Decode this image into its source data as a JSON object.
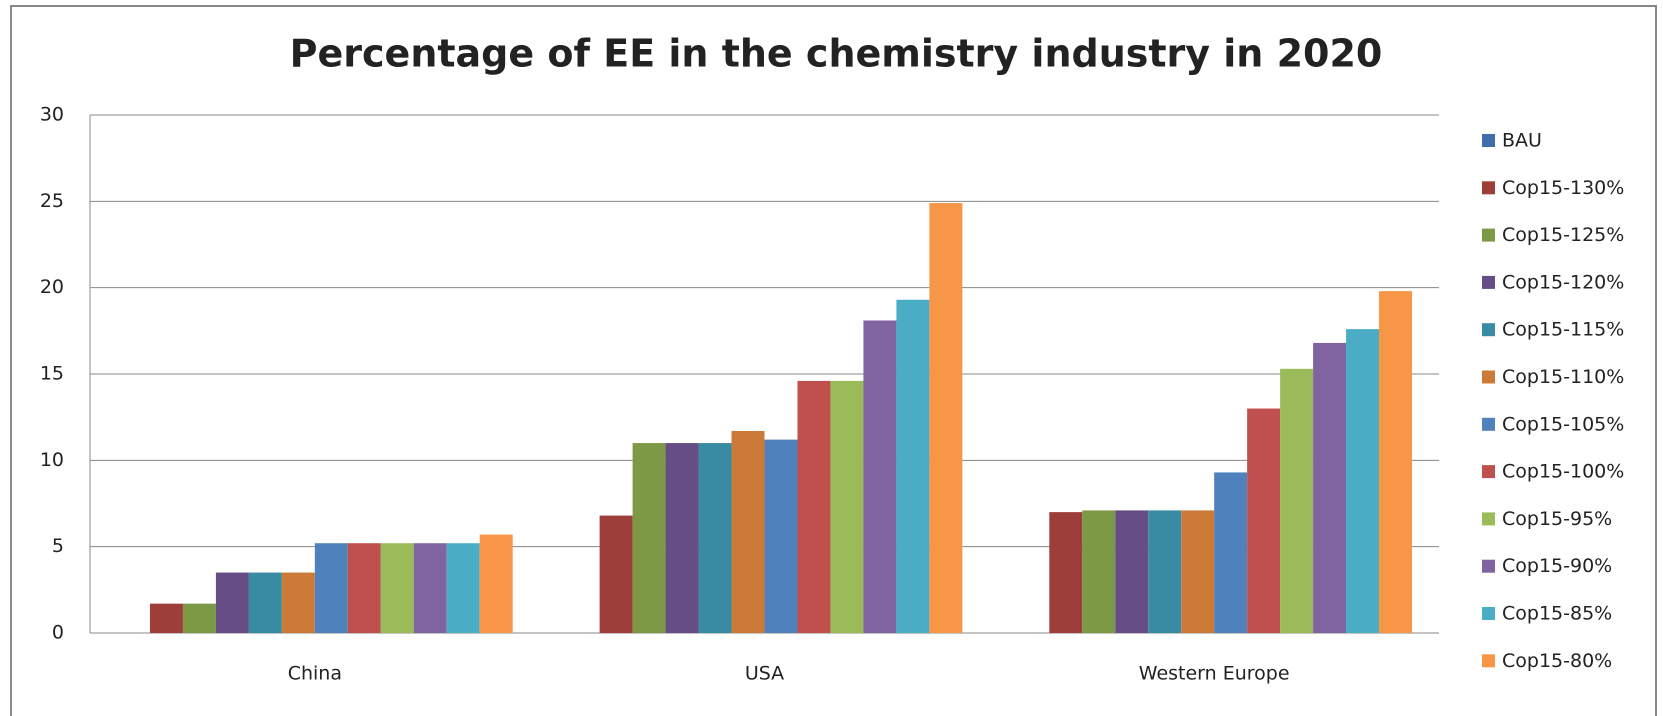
{
  "chart_data": {
    "type": "bar",
    "title": "Percentage of EE in the chemistry industry in 2020",
    "categories": [
      "China",
      "USA",
      "Western Europe"
    ],
    "series": [
      {
        "name": "BAU",
        "color": "#3f6ead",
        "values": [
          0,
          0,
          0
        ]
      },
      {
        "name": "Cop15-130%",
        "color": "#9e3e3b",
        "values": [
          1.7,
          6.8,
          7.0
        ]
      },
      {
        "name": "Cop15-125%",
        "color": "#7d9946",
        "values": [
          1.7,
          11,
          7.1
        ]
      },
      {
        "name": "Cop15-120%",
        "color": "#664d86",
        "values": [
          3.5,
          11,
          7.1
        ]
      },
      {
        "name": "Cop15-115%",
        "color": "#388ba3",
        "values": [
          3.5,
          11,
          7.1
        ]
      },
      {
        "name": "Cop15-110%",
        "color": "#cc7a37",
        "values": [
          3.5,
          11.7,
          7.1
        ]
      },
      {
        "name": "Cop15-105%",
        "color": "#4f81bd",
        "values": [
          5.2,
          11.2,
          9.3
        ]
      },
      {
        "name": "Cop15-100%",
        "color": "#c0504d",
        "values": [
          5.2,
          14.6,
          13.0
        ]
      },
      {
        "name": "Cop15-95%",
        "color": "#9bbb59",
        "values": [
          5.2,
          14.6,
          15.3
        ]
      },
      {
        "name": "Cop15-90%",
        "color": "#8064a2",
        "values": [
          5.2,
          18.1,
          16.8
        ]
      },
      {
        "name": "Cop15-85%",
        "color": "#4bacc6",
        "values": [
          5.2,
          19.3,
          17.6
        ]
      },
      {
        "name": "Cop15-80%",
        "color": "#f79646",
        "values": [
          5.7,
          24.9,
          19.8
        ]
      }
    ],
    "ylim": [
      0,
      30
    ],
    "yticks": [
      0,
      5,
      10,
      15,
      20,
      25,
      30
    ],
    "grid": true,
    "legend": "right"
  }
}
